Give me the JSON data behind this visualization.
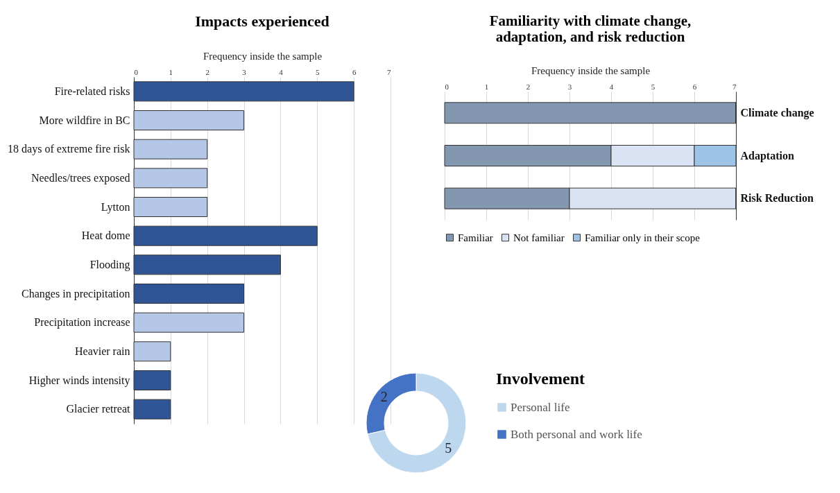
{
  "chart_data": [
    {
      "type": "bar",
      "orientation": "horizontal",
      "title": "Impacts experienced",
      "xlabel": "Frequency inside the sample",
      "categories": [
        "Fire-related risks",
        "More wildfire in BC",
        "18 days of extreme fire risk",
        "Needles/trees exposed",
        "Lytton",
        "Heat dome",
        "Flooding",
        "Changes in precipitation",
        "Precipitation increase",
        "Heavier rain",
        "Higher winds intensity",
        "Glacier retreat"
      ],
      "values": [
        6,
        3,
        2,
        2,
        2,
        5,
        4,
        3,
        3,
        1,
        1,
        1
      ],
      "colors": [
        "#2f5597",
        "#b4c7e7",
        "#b4c7e7",
        "#b4c7e7",
        "#b4c7e7",
        "#2f5597",
        "#2f5597",
        "#2f5597",
        "#b4c7e7",
        "#b4c7e7",
        "#2f5597",
        "#2f5597"
      ],
      "xlim": [
        0,
        7
      ],
      "xticks": [
        0,
        1,
        2,
        3,
        4,
        5,
        6,
        7
      ],
      "grid": "x"
    },
    {
      "type": "bar",
      "orientation": "horizontal",
      "stacked": true,
      "title": "Familiarity with climate change, adaptation, and risk reduction",
      "xlabel": "Frequency inside the sample",
      "categories": [
        "Climate change",
        "Adaptation",
        "Risk Reduction"
      ],
      "series": [
        {
          "name": "Familiar",
          "color": "#8497b0",
          "values": [
            7,
            4,
            3
          ]
        },
        {
          "name": "Not familiar",
          "color": "#dae3f3",
          "values": [
            0,
            2,
            4
          ]
        },
        {
          "name": "Familiar only in their scope",
          "color": "#9dc3e6",
          "values": [
            0,
            1,
            0
          ]
        }
      ],
      "xlim": [
        0,
        7
      ],
      "xticks": [
        0,
        1,
        2,
        3,
        4,
        5,
        6,
        7
      ],
      "grid": "x",
      "legend": "bottom"
    },
    {
      "type": "donut",
      "legend_title": "Involvement",
      "categories": [
        "Personal life",
        "Both personal and work life"
      ],
      "values": [
        5,
        2
      ],
      "colors": [
        "#bdd7ee",
        "#4472c4"
      ],
      "data_labels": true,
      "legend": "right"
    }
  ]
}
